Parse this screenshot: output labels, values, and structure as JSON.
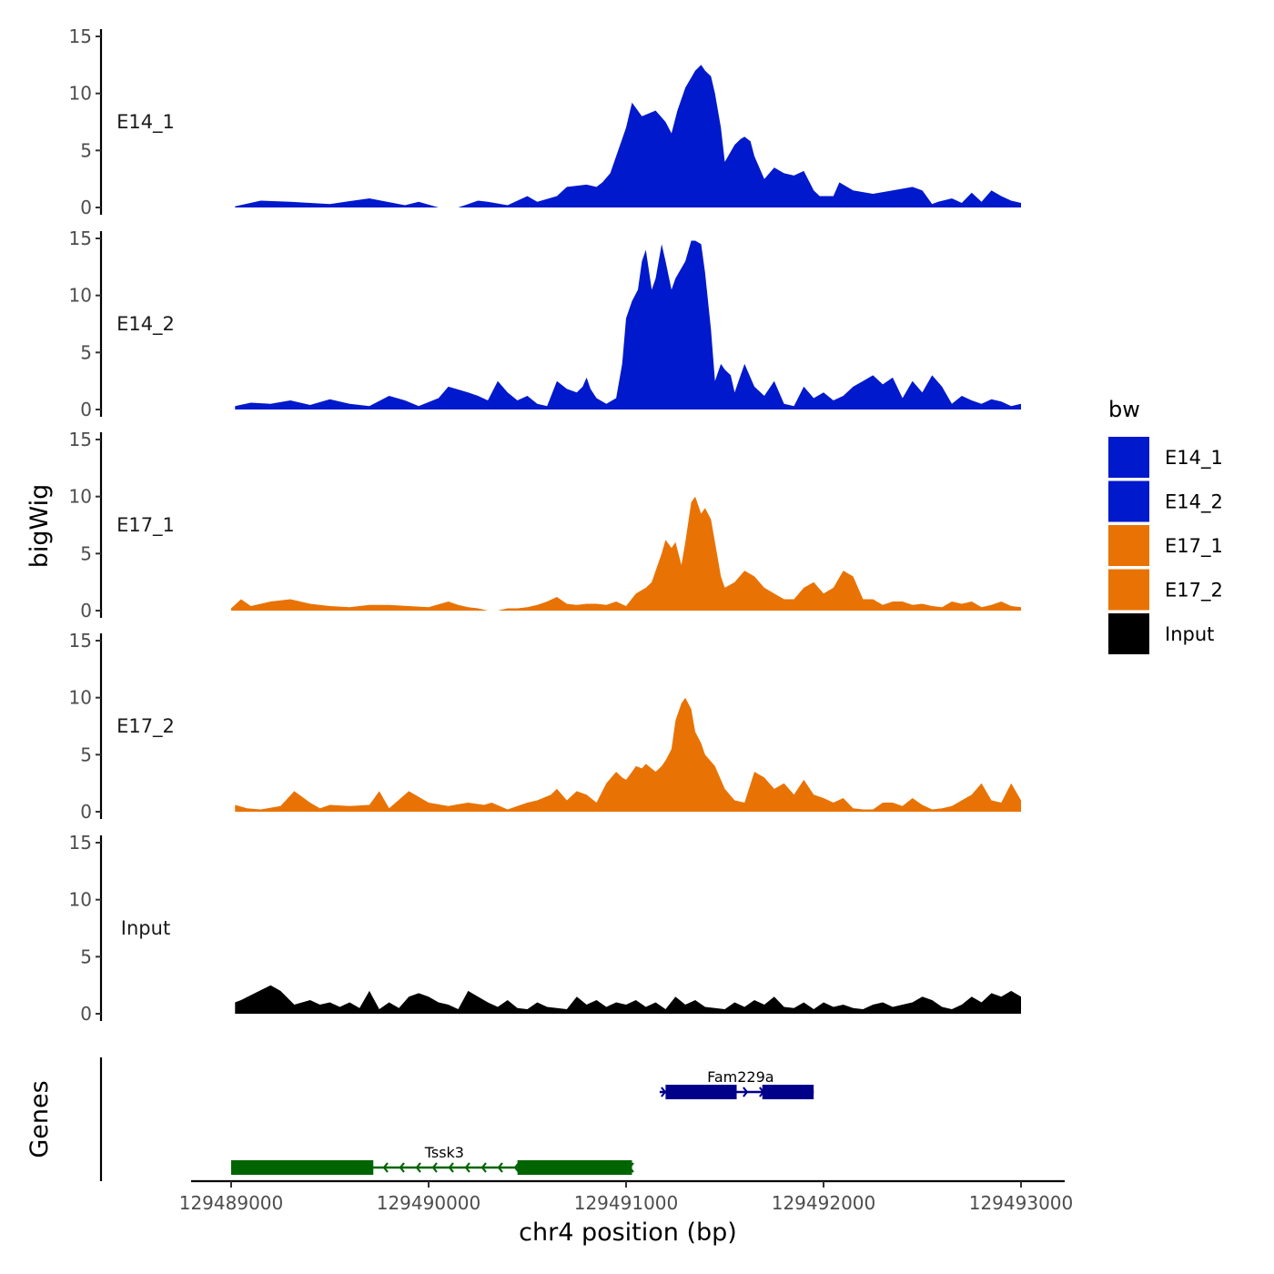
{
  "chart_data": {
    "type": "area",
    "chromosome": "chr4",
    "xlabel": "chr4 position (bp)",
    "ylabel": "bigWig",
    "genes_axis_label": "Genes",
    "xlim": [
      129489000,
      129493000
    ],
    "xticks": [
      129489000,
      129490000,
      129491000,
      129492000,
      129493000
    ],
    "xtick_labels": [
      "129489000",
      "129490000",
      "129491000",
      "129492000",
      "129493000"
    ],
    "ylim": [
      0,
      15
    ],
    "yticks": [
      0,
      5,
      10,
      15
    ],
    "ytick_labels": [
      "0",
      "5",
      "10",
      "15"
    ],
    "legend": {
      "title": "bw",
      "entries": [
        {
          "name": "E14_1",
          "color": "#0019cc"
        },
        {
          "name": "E14_2",
          "color": "#0019cc"
        },
        {
          "name": "E17_1",
          "color": "#e87304"
        },
        {
          "name": "E17_2",
          "color": "#e87304"
        },
        {
          "name": "Input",
          "color": "#000000"
        }
      ]
    },
    "series": [
      {
        "name": "E14_1",
        "color": "#0019cc",
        "x": [
          129489020,
          129489150,
          129489300,
          129489500,
          129489700,
          129489880,
          129489950,
          129490050,
          129490150,
          129490250,
          129490300,
          129490400,
          129490500,
          129490550,
          129490650,
          129490700,
          129490800,
          129490850,
          129490880,
          129490920,
          129491000,
          129491030,
          129491080,
          129491150,
          129491200,
          129491230,
          129491260,
          129491300,
          129491350,
          129491380,
          129491400,
          129491430,
          129491450,
          129491480,
          129491500,
          129491550,
          129491580,
          129491600,
          129491630,
          129491650,
          129491700,
          129491750,
          129491800,
          129491850,
          129491900,
          129491950,
          129491980,
          129492050,
          129492080,
          129492150,
          129492250,
          129492350,
          129492450,
          129492500,
          129492550,
          129492580,
          129492650,
          129492700,
          129492750,
          129492800,
          129492850,
          129492900,
          129492950,
          129493000
        ],
        "values": [
          0.1,
          0.6,
          0.5,
          0.3,
          0.8,
          0.2,
          0.5,
          0.0,
          0.0,
          0.6,
          0.5,
          0.2,
          1.0,
          0.5,
          1.0,
          1.8,
          2.0,
          1.8,
          2.2,
          3.0,
          7.0,
          9.2,
          8.0,
          8.5,
          7.5,
          6.5,
          8.5,
          10.5,
          12.0,
          12.5,
          12.0,
          11.5,
          10.0,
          7.0,
          4.0,
          5.5,
          6.0,
          6.2,
          5.8,
          4.5,
          2.5,
          3.5,
          3.0,
          2.8,
          3.2,
          1.5,
          1.0,
          1.0,
          2.2,
          1.5,
          1.2,
          1.5,
          1.8,
          1.5,
          0.3,
          0.5,
          0.8,
          0.4,
          1.3,
          0.5,
          1.5,
          1.0,
          0.6,
          0.4
        ]
      },
      {
        "name": "E14_2",
        "color": "#0019cc",
        "x": [
          129489020,
          129489100,
          129489200,
          129489300,
          129489400,
          129489500,
          129489600,
          129489700,
          129489800,
          129489880,
          129489950,
          129490050,
          129490100,
          129490200,
          129490250,
          129490300,
          129490350,
          129490400,
          129490450,
          129490500,
          129490550,
          129490600,
          129490650,
          129490700,
          129490750,
          129490780,
          129490800,
          129490820,
          129490850,
          129490900,
          129490950,
          129490980,
          129491000,
          129491030,
          129491060,
          129491080,
          129491100,
          129491130,
          129491150,
          129491180,
          129491200,
          129491230,
          129491250,
          129491300,
          129491330,
          129491350,
          129491380,
          129491400,
          129491430,
          129491450,
          129491480,
          129491500,
          129491530,
          129491550,
          129491600,
          129491650,
          129491700,
          129491750,
          129491800,
          129491850,
          129491900,
          129491950,
          129492000,
          129492050,
          129492100,
          129492150,
          129492200,
          129492250,
          129492300,
          129492350,
          129492400,
          129492450,
          129492500,
          129492550,
          129492600,
          129492650,
          129492700,
          129492750,
          129492800,
          129492850,
          129492900,
          129492950,
          129493000
        ],
        "values": [
          0.3,
          0.6,
          0.5,
          0.8,
          0.4,
          0.9,
          0.5,
          0.3,
          1.2,
          0.8,
          0.3,
          1.0,
          2.0,
          1.5,
          1.2,
          0.8,
          2.5,
          1.5,
          0.8,
          1.2,
          0.5,
          0.3,
          2.5,
          1.8,
          1.5,
          2.0,
          2.8,
          1.8,
          1.0,
          0.5,
          1.0,
          4.0,
          8.0,
          9.5,
          10.5,
          13.0,
          14.0,
          10.5,
          11.5,
          14.5,
          13.0,
          10.5,
          11.5,
          13.0,
          14.8,
          14.8,
          14.5,
          12.0,
          7.0,
          2.5,
          4.0,
          3.5,
          3.0,
          1.5,
          4.0,
          2.0,
          1.2,
          2.5,
          0.5,
          0.3,
          2.0,
          1.0,
          1.5,
          0.8,
          1.2,
          2.0,
          2.5,
          3.0,
          2.2,
          2.8,
          1.0,
          2.5,
          1.5,
          3.0,
          2.0,
          0.5,
          1.2,
          0.8,
          0.5,
          0.9,
          0.7,
          0.3,
          0.5
        ]
      },
      {
        "name": "E17_1",
        "color": "#e87304",
        "x": [
          129489000,
          129489050,
          129489100,
          129489200,
          129489300,
          129489400,
          129489500,
          129489600,
          129489700,
          129489800,
          129489900,
          129490000,
          129490100,
          129490150,
          129490200,
          129490250,
          129490300,
          129490350,
          129490400,
          129490450,
          129490500,
          129490550,
          129490600,
          129490650,
          129490700,
          129490750,
          129490800,
          129490850,
          129490900,
          129490950,
          129491000,
          129491050,
          129491100,
          129491130,
          129491150,
          129491180,
          129491200,
          129491230,
          129491250,
          129491280,
          129491300,
          129491330,
          129491350,
          129491380,
          129491400,
          129491430,
          129491450,
          129491480,
          129491500,
          129491550,
          129491600,
          129491650,
          129491700,
          129491750,
          129491800,
          129491850,
          129491900,
          129491950,
          129492000,
          129492050,
          129492100,
          129492150,
          129492200,
          129492250,
          129492300,
          129492350,
          129492400,
          129492450,
          129492500,
          129492550,
          129492600,
          129492650,
          129492700,
          129492750,
          129492800,
          129492850,
          129492900,
          129492950,
          129493000
        ],
        "values": [
          0.2,
          1.0,
          0.4,
          0.8,
          1.0,
          0.6,
          0.4,
          0.3,
          0.5,
          0.5,
          0.4,
          0.3,
          0.8,
          0.5,
          0.3,
          0.2,
          0.0,
          0.0,
          0.2,
          0.2,
          0.3,
          0.5,
          0.8,
          1.2,
          0.6,
          0.5,
          0.6,
          0.6,
          0.5,
          0.8,
          0.4,
          1.5,
          2.0,
          2.5,
          3.5,
          5.0,
          6.2,
          5.5,
          6.0,
          4.0,
          6.0,
          9.5,
          10.0,
          8.5,
          9.0,
          8.0,
          6.0,
          3.0,
          2.0,
          2.5,
          3.5,
          3.0,
          2.0,
          1.5,
          1.0,
          1.0,
          2.0,
          2.5,
          1.5,
          2.0,
          3.5,
          3.0,
          1.0,
          1.0,
          0.5,
          0.8,
          0.8,
          0.5,
          0.6,
          0.4,
          0.3,
          0.8,
          0.6,
          0.8,
          0.3,
          0.5,
          0.8,
          0.4,
          0.3
        ]
      },
      {
        "name": "E17_2",
        "color": "#e87304",
        "x": [
          129489020,
          129489080,
          129489150,
          129489250,
          129489320,
          129489400,
          129489450,
          129489500,
          129489600,
          129489700,
          129489750,
          129489800,
          129489900,
          129490000,
          129490100,
          129490200,
          129490280,
          129490320,
          129490400,
          129490450,
          129490500,
          129490550,
          129490620,
          129490650,
          129490700,
          129490750,
          129490800,
          129490850,
          129490900,
          129490950,
          129490980,
          129491000,
          129491030,
          129491050,
          129491080,
          129491100,
          129491150,
          129491180,
          129491200,
          129491230,
          129491250,
          129491280,
          129491300,
          129491330,
          129491350,
          129491380,
          129491400,
          129491450,
          129491500,
          129491550,
          129491600,
          129491650,
          129491700,
          129491750,
          129491800,
          129491850,
          129491900,
          129491950,
          129492000,
          129492050,
          129492100,
          129492150,
          129492200,
          129492250,
          129492300,
          129492350,
          129492400,
          129492450,
          129492500,
          129492550,
          129492600,
          129492650,
          129492700,
          129492750,
          129492800,
          129492850,
          129492900,
          129492950,
          129493000
        ],
        "values": [
          0.6,
          0.3,
          0.2,
          0.5,
          1.8,
          0.8,
          0.3,
          0.6,
          0.5,
          0.6,
          1.8,
          0.3,
          1.8,
          0.8,
          0.5,
          0.8,
          0.6,
          0.8,
          0.2,
          0.5,
          0.8,
          1.0,
          1.5,
          2.0,
          1.0,
          1.8,
          1.5,
          0.8,
          2.5,
          3.5,
          3.0,
          2.8,
          3.5,
          4.0,
          3.8,
          4.2,
          3.5,
          4.0,
          4.5,
          5.5,
          8.0,
          9.5,
          10.0,
          9.0,
          7.0,
          6.0,
          5.0,
          4.0,
          2.0,
          1.0,
          0.8,
          3.5,
          3.0,
          2.0,
          2.5,
          1.5,
          2.8,
          1.5,
          1.2,
          0.8,
          1.2,
          0.3,
          0.2,
          0.2,
          0.8,
          0.8,
          0.5,
          1.2,
          0.6,
          0.2,
          0.3,
          0.5,
          1.0,
          1.5,
          2.5,
          1.0,
          0.8,
          2.5,
          1.0
        ]
      },
      {
        "name": "Input",
        "color": "#000000",
        "x": [
          129489020,
          129489050,
          129489120,
          129489200,
          129489250,
          129489320,
          129489400,
          129489450,
          129489500,
          129489550,
          129489600,
          129489650,
          129489700,
          129489750,
          129489800,
          129489850,
          129489900,
          129489950,
          129490000,
          129490050,
          129490100,
          129490150,
          129490200,
          129490250,
          129490300,
          129490350,
          129490400,
          129490450,
          129490500,
          129490550,
          129490600,
          129490650,
          129490700,
          129490750,
          129490800,
          129490850,
          129490900,
          129490950,
          129491000,
          129491050,
          129491100,
          129491150,
          129491200,
          129491250,
          129491300,
          129491350,
          129491400,
          129491450,
          129491500,
          129491550,
          129491600,
          129491650,
          129491700,
          129491750,
          129491800,
          129491850,
          129491900,
          129491950,
          129492000,
          129492050,
          129492100,
          129492150,
          129492200,
          129492250,
          129492300,
          129492350,
          129492400,
          129492450,
          129492500,
          129492550,
          129492600,
          129492650,
          129492700,
          129492750,
          129492800,
          129492850,
          129492900,
          129492950,
          129493000
        ],
        "values": [
          1.0,
          1.2,
          1.8,
          2.5,
          2.0,
          0.8,
          1.2,
          0.8,
          1.0,
          0.6,
          1.0,
          0.5,
          2.0,
          0.4,
          1.0,
          0.5,
          1.5,
          1.8,
          1.5,
          1.0,
          0.8,
          0.4,
          2.0,
          1.5,
          1.0,
          0.6,
          1.2,
          0.5,
          0.4,
          1.0,
          0.6,
          0.5,
          0.4,
          1.5,
          0.8,
          1.2,
          0.6,
          1.0,
          0.8,
          1.2,
          0.6,
          1.0,
          0.4,
          1.5,
          0.8,
          1.2,
          0.6,
          0.5,
          0.4,
          1.0,
          0.6,
          1.2,
          0.8,
          1.5,
          0.6,
          0.5,
          1.0,
          0.4,
          1.0,
          0.6,
          0.8,
          0.5,
          0.4,
          0.8,
          1.0,
          0.6,
          0.8,
          1.0,
          1.5,
          1.2,
          0.6,
          0.4,
          0.8,
          1.5,
          1.0,
          1.8,
          1.5,
          2.0,
          1.5
        ]
      }
    ],
    "genes": [
      {
        "name": "Tssk3",
        "color": "#006400",
        "strand": "-",
        "start": 129489000,
        "end": 129491030,
        "exons": [
          [
            129489000,
            129489720
          ],
          [
            129490450,
            129491030
          ]
        ]
      },
      {
        "name": "Fam229a",
        "color": "#00008b",
        "strand": "+",
        "start": 129491170,
        "end": 129491950,
        "exons": [
          [
            129491200,
            129491560
          ],
          [
            129491690,
            129491950
          ]
        ]
      }
    ]
  }
}
